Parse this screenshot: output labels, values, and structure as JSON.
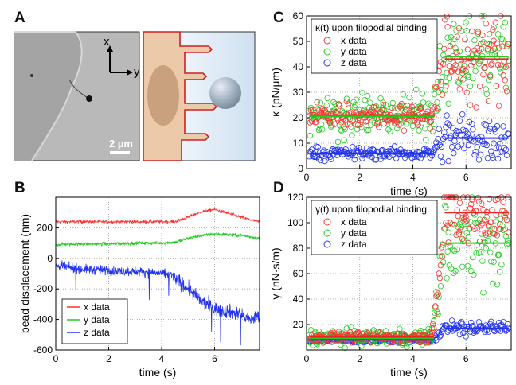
{
  "panel_labels": {
    "a": "A",
    "b": "B",
    "c": "C",
    "d": "D"
  },
  "panel_a": {
    "scale_bar_label": "2 µm",
    "axis_x": "x",
    "axis_y": "y"
  },
  "colors": {
    "x": "#ff3030",
    "y": "#22cc22",
    "z": "#2233ee",
    "fit": "#ee2222"
  },
  "chart_data": [
    {
      "id": "B",
      "type": "line",
      "title": "",
      "xlabel": "time (s)",
      "ylabel": "bead displacement (nm)",
      "xlim": [
        0,
        7.7
      ],
      "ylim": [
        -600,
        400
      ],
      "xticks": [
        0,
        2,
        4,
        6
      ],
      "yticks": [
        -600,
        -400,
        -200,
        0,
        200
      ],
      "legend": "bottom-left",
      "grid": true,
      "series": [
        {
          "name": "x data",
          "color": "#ff3030",
          "x": [
            0,
            1,
            2,
            3,
            4,
            4.5,
            5,
            5.5,
            5.8,
            6.0,
            6.3,
            6.7,
            7.0,
            7.4,
            7.7
          ],
          "y": [
            240,
            240,
            240,
            240,
            240,
            240,
            270,
            305,
            315,
            320,
            305,
            285,
            270,
            250,
            240
          ]
        },
        {
          "name": "y data",
          "color": "#22cc22",
          "x": [
            0,
            1,
            2,
            3,
            4,
            4.5,
            5,
            5.5,
            6.0,
            6.5,
            7.0,
            7.4,
            7.7
          ],
          "y": [
            90,
            95,
            95,
            100,
            100,
            105,
            130,
            150,
            160,
            155,
            150,
            140,
            130
          ]
        },
        {
          "name": "z data",
          "color": "#2233ee",
          "x": [
            0,
            0.5,
            1,
            1.5,
            2,
            2.5,
            3,
            3.5,
            4,
            4.4,
            4.8,
            5.2,
            5.5,
            5.8,
            6.0,
            6.3,
            6.6,
            7.0,
            7.3,
            7.7
          ],
          "y": [
            -50,
            -60,
            -70,
            -75,
            -80,
            -85,
            -85,
            -90,
            -100,
            -110,
            -170,
            -230,
            -280,
            -310,
            -330,
            -340,
            -350,
            -370,
            -400,
            -380
          ]
        }
      ]
    },
    {
      "id": "C",
      "type": "scatter",
      "title": "κ(t) upon filopodial binding",
      "xlabel": "time (s)",
      "ylabel": "κ (pN/µm)",
      "xlim": [
        0,
        7.7
      ],
      "ylim": [
        0,
        60
      ],
      "xticks": [
        0,
        2,
        4,
        6
      ],
      "yticks": [
        0,
        10,
        20,
        30,
        40,
        50,
        60
      ],
      "legend": "top-left",
      "grid": true,
      "series": [
        {
          "name": "x data",
          "color": "#ff3030",
          "before_mean": 21,
          "before_spread": 2.5,
          "after_mean": 43,
          "after_spread": 8,
          "transition_s": 4.8
        },
        {
          "name": "y data",
          "color": "#22cc22",
          "before_mean": 21,
          "before_spread": 4,
          "after_mean": 44,
          "after_spread": 8,
          "transition_s": 4.8
        },
        {
          "name": "z data",
          "color": "#2233ee",
          "before_mean": 6,
          "before_spread": 1.2,
          "after_mean": 12,
          "after_spread": 5,
          "transition_s": 4.8
        }
      ],
      "fit_lines": [
        {
          "color": "#ee2222",
          "x": [
            0.1,
            4.8
          ],
          "y": 21
        },
        {
          "color": "#22cc22",
          "x": [
            0.1,
            4.8
          ],
          "y": 20.5
        },
        {
          "color": "#2233ee",
          "x": [
            0.1,
            4.8
          ],
          "y": 6
        },
        {
          "color": "#ee2222",
          "x": [
            5.2,
            7.6
          ],
          "y": 43
        },
        {
          "color": "#22cc22",
          "x": [
            5.2,
            7.6
          ],
          "y": 44
        },
        {
          "color": "#2233ee",
          "x": [
            5.2,
            7.6
          ],
          "y": 12
        }
      ]
    },
    {
      "id": "D",
      "type": "scatter",
      "title": "γ(t) upon filopodial binding",
      "xlabel": "time (s)",
      "ylabel": "γ (nN·s/m)",
      "xlim": [
        0,
        7.7
      ],
      "ylim": [
        0,
        120
      ],
      "xticks": [
        0,
        2,
        4,
        6
      ],
      "yticks": [
        20,
        40,
        60,
        80,
        100,
        120
      ],
      "legend": "top-left",
      "grid": true,
      "series": [
        {
          "name": "x data",
          "color": "#ff3030",
          "before_mean": 10,
          "before_spread": 2,
          "after_mean": 105,
          "after_spread": 14,
          "transition_s": 4.8
        },
        {
          "name": "y data",
          "color": "#22cc22",
          "before_mean": 10,
          "before_spread": 3,
          "after_mean": 85,
          "after_spread": 18,
          "transition_s": 4.8
        },
        {
          "name": "z data",
          "color": "#2233ee",
          "before_mean": 8,
          "before_spread": 1.2,
          "after_mean": 17,
          "after_spread": 3,
          "transition_s": 4.8
        }
      ],
      "fit_lines": [
        {
          "color": "#ee2222",
          "x": [
            0.1,
            4.8
          ],
          "y": 10
        },
        {
          "color": "#22cc22",
          "x": [
            0.1,
            4.8
          ],
          "y": 9
        },
        {
          "color": "#2233ee",
          "x": [
            0.1,
            4.8
          ],
          "y": 8
        },
        {
          "color": "#ee2222",
          "x": [
            5.2,
            7.6
          ],
          "y": 108
        },
        {
          "color": "#22cc22",
          "x": [
            5.2,
            7.6
          ],
          "y": 84
        },
        {
          "color": "#2233ee",
          "x": [
            5.2,
            7.6
          ],
          "y": 17
        }
      ]
    }
  ]
}
